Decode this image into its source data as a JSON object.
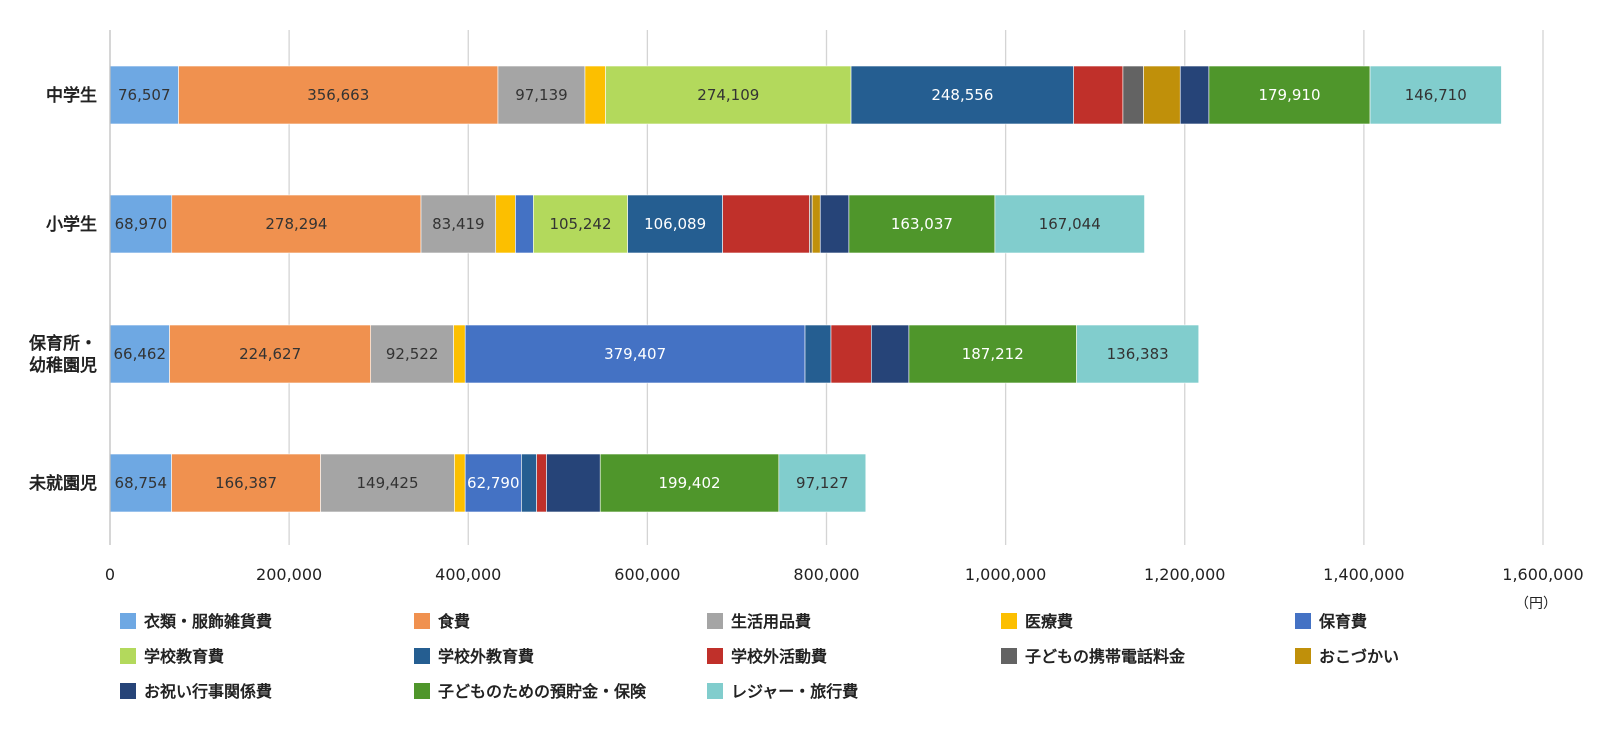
{
  "chart_data": {
    "type": "bar",
    "orientation": "horizontal",
    "stacked": true,
    "categories": [
      "中学生",
      "小学生",
      "保育所・\n幼稚園児",
      "未就園児"
    ],
    "xlim": [
      0,
      1600000
    ],
    "xticks": [
      0,
      200000,
      400000,
      600000,
      800000,
      1000000,
      1200000,
      1400000,
      1600000
    ],
    "x_unit": "（円）",
    "grid": "vertical",
    "legend_position": "bottom",
    "series": [
      {
        "name": "衣類・服飾雑貨費",
        "color": "#6ea8e3",
        "label_color": "#333333",
        "values": [
          76507,
          68970,
          66462,
          68754
        ],
        "labels": [
          "76,507",
          "68,970",
          "66,462",
          "68,754"
        ]
      },
      {
        "name": "食費",
        "color": "#f0914f",
        "label_color": "#333333",
        "values": [
          356663,
          278294,
          224627,
          166387
        ],
        "labels": [
          "356,663",
          "278,294",
          "224,627",
          "166,387"
        ]
      },
      {
        "name": "生活用品費",
        "color": "#a5a5a5",
        "label_color": "#333333",
        "values": [
          97139,
          83419,
          92522,
          149425
        ],
        "labels": [
          "97,139",
          "83,419",
          "92,522",
          "149,425"
        ]
      },
      {
        "name": "医療費",
        "color": "#fcbf00",
        "label_color": "#333333",
        "values": [
          23000,
          22000,
          13000,
          12000
        ],
        "labels": [
          "",
          "",
          "",
          ""
        ]
      },
      {
        "name": "保育費",
        "color": "#4472c4",
        "label_color": "#ffffff",
        "values": [
          0,
          20000,
          379407,
          62790
        ],
        "labels": [
          "",
          "",
          "379,407",
          "62,790"
        ]
      },
      {
        "name": "学校教育費",
        "color": "#b3d95c",
        "label_color": "#333333",
        "values": [
          274109,
          105242,
          0,
          0
        ],
        "labels": [
          "274,109",
          "105,242",
          "",
          ""
        ]
      },
      {
        "name": "学校外教育費",
        "color": "#255e91",
        "label_color": "#ffffff",
        "values": [
          248556,
          106089,
          29000,
          17000
        ],
        "labels": [
          "248,556",
          "106,089",
          "",
          ""
        ]
      },
      {
        "name": "学校外活動費",
        "color": "#c0302a",
        "label_color": "#ffffff",
        "values": [
          55000,
          97000,
          45000,
          11000
        ],
        "labels": [
          "",
          "",
          "",
          ""
        ]
      },
      {
        "name": "子どもの携帯電話料金",
        "color": "#636363",
        "label_color": "#ffffff",
        "values": [
          23000,
          3000,
          0,
          0
        ],
        "labels": [
          "",
          "",
          "",
          ""
        ]
      },
      {
        "name": "おこづかい",
        "color": "#c0900a",
        "label_color": "#ffffff",
        "values": [
          41000,
          9000,
          0,
          0
        ],
        "labels": [
          "",
          "",
          "",
          ""
        ]
      },
      {
        "name": "お祝い行事関係費",
        "color": "#264478",
        "label_color": "#ffffff",
        "values": [
          32000,
          32000,
          42000,
          60000
        ],
        "labels": [
          "",
          "",
          "",
          ""
        ]
      },
      {
        "name": "子どものための預貯金・保険",
        "color": "#4f962b",
        "label_color": "#ffffff",
        "values": [
          179910,
          163037,
          187212,
          199402
        ],
        "labels": [
          "179,910",
          "163,037",
          "187,212",
          "199,402"
        ]
      },
      {
        "name": "レジャー・旅行費",
        "color": "#81cdcd",
        "label_color": "#333333",
        "values": [
          146710,
          167044,
          136383,
          97127
        ],
        "labels": [
          "146,710",
          "167,044",
          "136,383",
          "97,127"
        ]
      }
    ]
  }
}
